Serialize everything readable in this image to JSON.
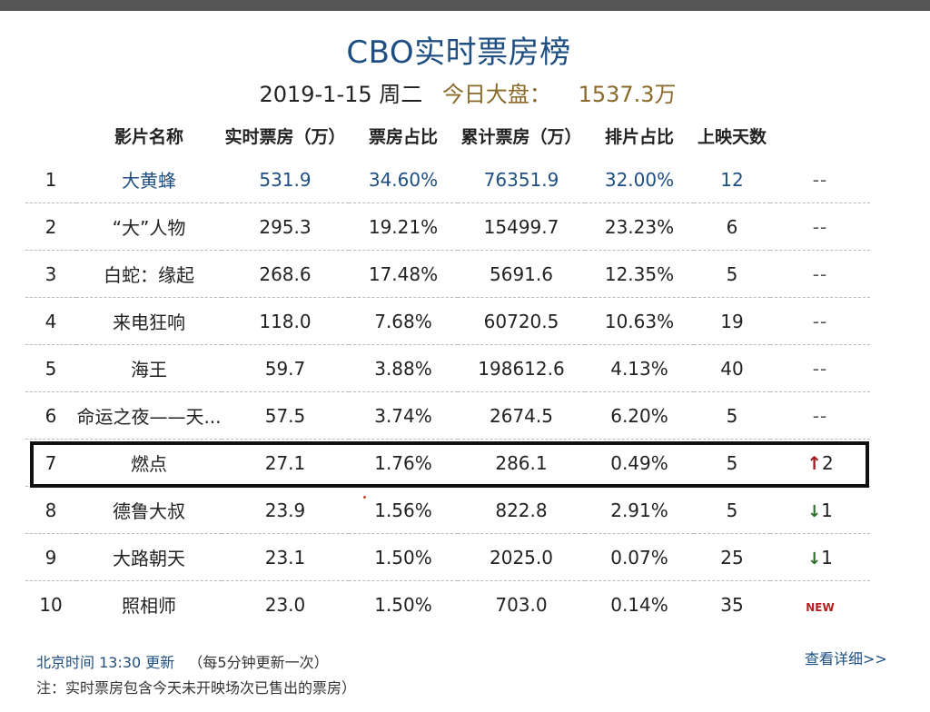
{
  "title": "CBO实时票房榜",
  "date": "2019-1-15",
  "weekday": "周二",
  "total_label": "今日大盘：",
  "total_value": "1537.3万",
  "headers": [
    "影片名称",
    "实时票房（万）",
    "票房占比",
    "累计票房（万）",
    "排片占比",
    "上映天数"
  ],
  "rows": [
    {
      "rank": "1",
      "name": "大黄蜂",
      "realtime": "531.9",
      "share": "34.60%",
      "cumulative": "76351.9",
      "screening": "32.00%",
      "days": "12",
      "change": "--",
      "change_type": "none"
    },
    {
      "rank": "2",
      "name": "“大”人物",
      "realtime": "295.3",
      "share": "19.21%",
      "cumulative": "15499.7",
      "screening": "23.23%",
      "days": "6",
      "change": "--",
      "change_type": "none"
    },
    {
      "rank": "3",
      "name": "白蛇：缘起",
      "realtime": "268.6",
      "share": "17.48%",
      "cumulative": "5691.6",
      "screening": "12.35%",
      "days": "5",
      "change": "--",
      "change_type": "none"
    },
    {
      "rank": "4",
      "name": "来电狂响",
      "realtime": "118.0",
      "share": "7.68%",
      "cumulative": "60720.5",
      "screening": "10.63%",
      "days": "19",
      "change": "--",
      "change_type": "none"
    },
    {
      "rank": "5",
      "name": "海王",
      "realtime": "59.7",
      "share": "3.88%",
      "cumulative": "198612.6",
      "screening": "4.13%",
      "days": "40",
      "change": "--",
      "change_type": "none"
    },
    {
      "rank": "6",
      "name": "命运之夜——天...",
      "realtime": "57.5",
      "share": "3.74%",
      "cumulative": "2674.5",
      "screening": "6.20%",
      "days": "5",
      "change": "--",
      "change_type": "none"
    },
    {
      "rank": "7",
      "name": "燃点",
      "realtime": "27.1",
      "share": "1.76%",
      "cumulative": "286.1",
      "screening": "0.49%",
      "days": "5",
      "change": "2",
      "change_type": "up"
    },
    {
      "rank": "8",
      "name": "德鲁大叔",
      "realtime": "23.9",
      "share": "1.56%",
      "cumulative": "822.8",
      "screening": "2.91%",
      "days": "5",
      "change": "1",
      "change_type": "down"
    },
    {
      "rank": "9",
      "name": "大路朝天",
      "realtime": "23.1",
      "share": "1.50%",
      "cumulative": "2025.0",
      "screening": "0.07%",
      "days": "25",
      "change": "1",
      "change_type": "down"
    },
    {
      "rank": "10",
      "name": "照相师",
      "realtime": "23.0",
      "share": "1.50%",
      "cumulative": "703.0",
      "screening": "0.14%",
      "days": "35",
      "change": "NEW",
      "change_type": "new"
    }
  ],
  "footer": {
    "update_time": "北京时间 13:30 更新",
    "update_note": "（每5分钟更新一次）",
    "note": "注：实时票房包含今天未开映场次已售出的票房）",
    "details_link": "查看详细>>"
  },
  "icons": {
    "up": "arrow-up-icon",
    "down": "arrow-down-icon"
  },
  "colors": {
    "title": "#1f4f82",
    "total": "#8a6a2a",
    "up": "#a31a1a",
    "down": "#2c6e2c",
    "new": "#b81c1c"
  }
}
